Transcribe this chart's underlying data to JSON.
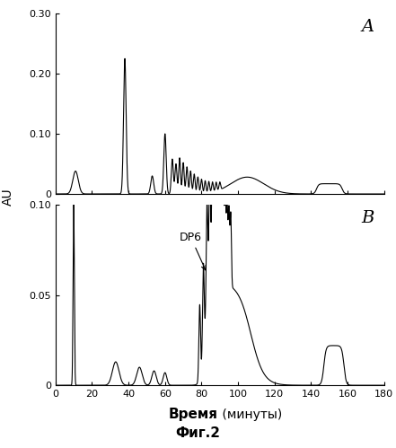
{
  "title": "Фиг.2",
  "xlabel_bold": "Время",
  "xlabel_normal": " (минуты)",
  "ylabel": "AU",
  "label_A": "A",
  "label_B": "B",
  "dp6_label": "DP6",
  "panel_A": {
    "ylim": [
      0,
      0.3
    ],
    "yticks": [
      0,
      0.1,
      0.2,
      0.3
    ],
    "xlim": [
      0,
      180
    ]
  },
  "panel_B": {
    "ylim": [
      0,
      0.1
    ],
    "yticks": [
      0,
      0.05,
      0.1
    ],
    "xlim": [
      0,
      180
    ]
  },
  "xticks": [
    0,
    20,
    40,
    60,
    80,
    100,
    120,
    140,
    160,
    180
  ],
  "line_color": "#000000",
  "background_color": "#ffffff",
  "line_width": 0.8,
  "fig_width": 4.41,
  "fig_height": 4.99,
  "dpi": 100
}
